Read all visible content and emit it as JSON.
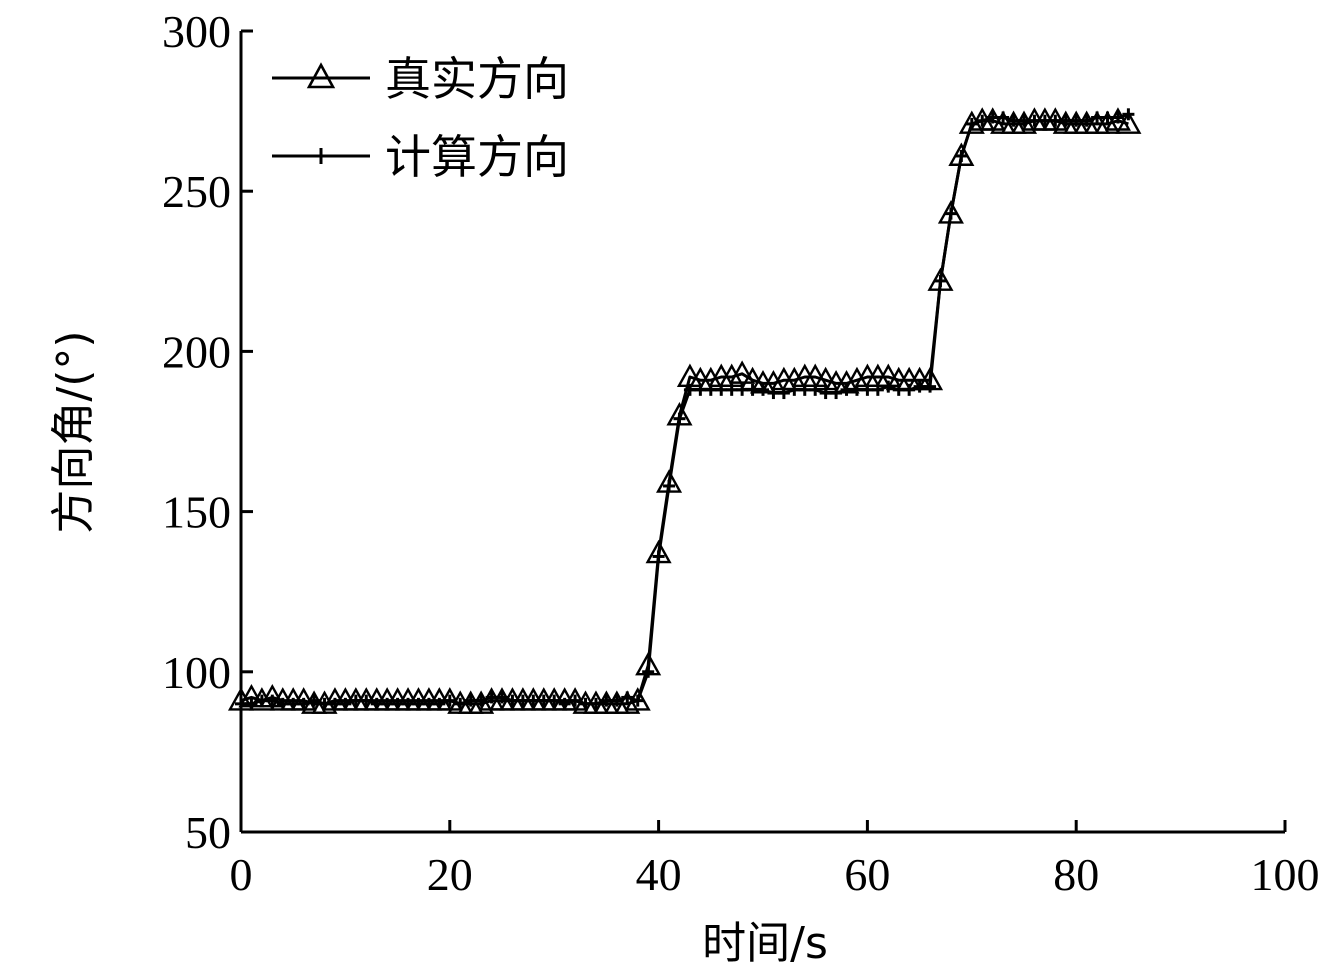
{
  "chart_data": {
    "type": "line",
    "xlabel": "时间/s",
    "ylabel": "方向角/(°)",
    "xlim": [
      0,
      100
    ],
    "ylim": [
      50,
      300
    ],
    "xticks": [
      0,
      20,
      40,
      60,
      80,
      100
    ],
    "yticks": [
      50,
      100,
      150,
      200,
      250,
      300
    ],
    "grid": false,
    "legend_position": "top-left",
    "series": [
      {
        "name": "真实方向",
        "marker": "triangle",
        "color": "#000000",
        "x": [
          0,
          1,
          2,
          3,
          4,
          5,
          6,
          7,
          8,
          9,
          10,
          11,
          12,
          13,
          14,
          15,
          16,
          17,
          18,
          19,
          20,
          21,
          22,
          23,
          24,
          25,
          26,
          27,
          28,
          29,
          30,
          31,
          32,
          33,
          34,
          35,
          36,
          37,
          38,
          39,
          40,
          41,
          42,
          43,
          44,
          45,
          46,
          47,
          48,
          49,
          50,
          51,
          52,
          53,
          54,
          55,
          56,
          57,
          58,
          59,
          60,
          61,
          62,
          63,
          64,
          65,
          66,
          67,
          68,
          69,
          70,
          71,
          72,
          73,
          74,
          75,
          76,
          77,
          78,
          79,
          80,
          81,
          82,
          83,
          84,
          85
        ],
        "y": [
          91,
          92,
          91,
          92,
          91,
          91,
          91,
          90,
          90,
          91,
          91,
          91,
          91,
          91,
          91,
          91,
          91,
          91,
          91,
          91,
          91,
          90,
          90,
          90,
          91,
          91,
          91,
          91,
          91,
          91,
          91,
          91,
          91,
          90,
          90,
          90,
          90,
          90,
          91,
          102,
          137,
          159,
          180,
          192,
          191,
          191,
          192,
          192,
          193,
          191,
          190,
          190,
          191,
          191,
          192,
          192,
          191,
          190,
          190,
          191,
          192,
          192,
          192,
          191,
          191,
          191,
          191,
          222,
          243,
          261,
          271,
          272,
          272,
          271,
          271,
          271,
          272,
          272,
          272,
          271,
          271,
          271,
          271,
          271,
          272,
          271
        ]
      },
      {
        "name": "计算方向",
        "marker": "plus",
        "color": "#000000",
        "x": [
          0,
          1,
          2,
          3,
          4,
          5,
          6,
          7,
          8,
          9,
          10,
          11,
          12,
          13,
          14,
          15,
          16,
          17,
          18,
          19,
          20,
          21,
          22,
          23,
          24,
          25,
          26,
          27,
          28,
          29,
          30,
          31,
          32,
          33,
          34,
          35,
          36,
          37,
          38,
          39,
          40,
          41,
          42,
          43,
          44,
          45,
          46,
          47,
          48,
          49,
          50,
          51,
          52,
          53,
          54,
          55,
          56,
          57,
          58,
          59,
          60,
          61,
          62,
          63,
          64,
          65,
          66,
          67,
          68,
          69,
          70,
          71,
          72,
          73,
          74,
          75,
          76,
          77,
          78,
          79,
          80,
          81,
          82,
          83,
          84,
          85
        ],
        "y": [
          90,
          90,
          91,
          91,
          90,
          90,
          90,
          91,
          90,
          90,
          90,
          91,
          91,
          90,
          90,
          90,
          90,
          90,
          90,
          90,
          91,
          90,
          91,
          91,
          92,
          92,
          91,
          91,
          91,
          91,
          91,
          90,
          91,
          90,
          90,
          91,
          91,
          92,
          91,
          100,
          136,
          158,
          179,
          188,
          188,
          188,
          188,
          188,
          188,
          188,
          188,
          187,
          187,
          188,
          188,
          188,
          187,
          187,
          188,
          188,
          188,
          188,
          189,
          188,
          188,
          189,
          189,
          222,
          243,
          261,
          271,
          272,
          273,
          273,
          272,
          272,
          272,
          272,
          272,
          272,
          272,
          272,
          273,
          273,
          273,
          274
        ]
      }
    ]
  }
}
